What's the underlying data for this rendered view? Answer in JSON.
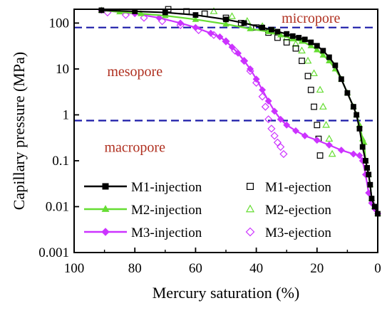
{
  "chart_data": {
    "type": "line",
    "xlabel": "Mercury saturation (%)",
    "ylabel": "Capillary pressure (MPa)",
    "xlim": [
      100,
      0
    ],
    "ylim": [
      0.001,
      200
    ],
    "yscale": "log",
    "x_ticks": [
      100,
      80,
      60,
      40,
      20,
      0
    ],
    "x_tick_labels": [
      "100",
      "80",
      "60",
      "40",
      "20",
      "0"
    ],
    "y_ticks": [
      0.001,
      0.01,
      0.1,
      1,
      10,
      100
    ],
    "y_tick_labels": [
      "0.001",
      "0.01",
      "0.1",
      "1",
      "10",
      "100"
    ],
    "grid": false,
    "legend_position": "bottom, two columns",
    "colors": {
      "m1": "#000000",
      "m2": "#66dd33",
      "m3": "#cc33ff",
      "boundary": "#1a1aa8",
      "region_label": "#b03020",
      "axis": "#000000"
    },
    "boundaries": [
      {
        "y": 80,
        "label": "micropore"
      },
      {
        "y": 0.75,
        "label": ""
      }
    ],
    "region_labels": [
      {
        "text": "micropore",
        "x": 22,
        "y": 130
      },
      {
        "text": "mesopore",
        "x": 80,
        "y": 9
      },
      {
        "text": "macropore",
        "x": 80,
        "y": 0.2
      }
    ],
    "series": [
      {
        "name": "M1-injection",
        "color": "#000000",
        "marker": "square-filled",
        "line": true,
        "x": [
          91,
          80,
          70,
          60,
          50,
          44,
          38,
          35,
          33,
          30,
          28,
          26,
          24,
          22,
          20,
          18,
          16,
          14,
          12,
          10,
          8,
          7,
          6,
          5,
          4,
          3.5,
          3,
          2.5,
          2,
          1,
          0
        ],
        "y": [
          190,
          180,
          170,
          150,
          120,
          100,
          80,
          72,
          65,
          58,
          52,
          48,
          44,
          38,
          32,
          25,
          18,
          12,
          6,
          3,
          1.5,
          1,
          0.5,
          0.2,
          0.1,
          0.07,
          0.05,
          0.03,
          0.015,
          0.01,
          0.007
        ]
      },
      {
        "name": "M1-ejection",
        "color": "#000000",
        "marker": "square-open",
        "line": false,
        "x": [
          69,
          63,
          57,
          50,
          45,
          40,
          36,
          33,
          30,
          27,
          25,
          23,
          22,
          21,
          20,
          19.5,
          19
        ],
        "y": [
          200,
          180,
          160,
          130,
          100,
          80,
          62,
          48,
          38,
          28,
          15,
          7,
          3.5,
          1.5,
          0.6,
          0.3,
          0.13
        ]
      },
      {
        "name": "M2-injection",
        "color": "#66dd33",
        "marker": "triangle-filled",
        "line": true,
        "x": [
          91,
          85,
          78,
          70,
          60,
          50,
          42,
          36,
          32,
          28,
          25,
          22,
          20,
          18,
          16,
          14,
          12,
          10,
          8,
          7,
          6,
          5,
          4.5,
          4,
          3.5,
          3,
          2.5,
          2,
          1,
          0
        ],
        "y": [
          190,
          175,
          160,
          145,
          120,
          95,
          75,
          65,
          55,
          45,
          40,
          32,
          26,
          20,
          15,
          10,
          6,
          3,
          1.5,
          1,
          0.6,
          0.3,
          0.25,
          0.1,
          0.07,
          0.05,
          0.03,
          0.015,
          0.01,
          0.007
        ]
      },
      {
        "name": "M2-ejection",
        "color": "#66dd33",
        "marker": "triangle-open",
        "line": false,
        "x": [
          54,
          48,
          43,
          38,
          34,
          30,
          27,
          25,
          23,
          21,
          19,
          18,
          17,
          16,
          15
        ],
        "y": [
          180,
          140,
          110,
          85,
          65,
          48,
          35,
          25,
          15,
          8,
          3.5,
          1.5,
          0.6,
          0.3,
          0.14
        ]
      },
      {
        "name": "M3-injection",
        "color": "#cc33ff",
        "marker": "diamond-filled",
        "line": true,
        "x": [
          91,
          80,
          72,
          65,
          60,
          55,
          52,
          50,
          48,
          46,
          44,
          42,
          40,
          38,
          36,
          34,
          32,
          30,
          27,
          24,
          20,
          16,
          12,
          8,
          6,
          5,
          4,
          3,
          2,
          1,
          0
        ],
        "y": [
          190,
          160,
          130,
          100,
          80,
          60,
          50,
          40,
          30,
          22,
          15,
          10,
          6,
          3.5,
          2,
          1.2,
          0.8,
          0.6,
          0.45,
          0.35,
          0.28,
          0.22,
          0.17,
          0.14,
          0.13,
          0.1,
          0.05,
          0.02,
          0.012,
          0.009,
          0.007
        ]
      },
      {
        "name": "M3-ejection",
        "color": "#cc33ff",
        "marker": "diamond-open",
        "line": false,
        "x": [
          89,
          83,
          77,
          71,
          65,
          59,
          54,
          50,
          47,
          44,
          42,
          40,
          38,
          37,
          36,
          35,
          34,
          33,
          32,
          31
        ],
        "y": [
          170,
          150,
          130,
          110,
          90,
          70,
          55,
          40,
          25,
          15,
          9,
          5,
          2.5,
          1.5,
          0.8,
          0.5,
          0.35,
          0.25,
          0.2,
          0.14
        ]
      }
    ]
  }
}
